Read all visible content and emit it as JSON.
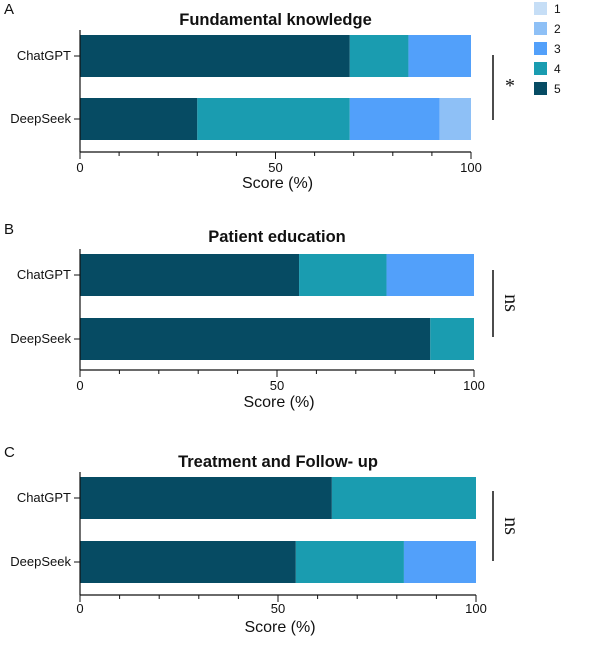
{
  "legend": [
    {
      "label": "1",
      "color": "#c6def6"
    },
    {
      "label": "2",
      "color": "#8ec0f6"
    },
    {
      "label": "3",
      "color": "#52a0fa"
    },
    {
      "label": "4",
      "color": "#1a9cb0"
    },
    {
      "label": "5",
      "color": "#064b63"
    }
  ],
  "chart_data": [
    {
      "type": "bar",
      "orientation": "horizontal",
      "stacked": true,
      "panel": "A",
      "title": "Fundamental knowledge",
      "xlabel": "Score (%)",
      "xlim": [
        0,
        100
      ],
      "xticks": [
        "0",
        "50",
        "100"
      ],
      "categories": [
        "ChatGPT",
        "DeepSeek"
      ],
      "series": [
        {
          "name": "5",
          "values": [
            69,
            30
          ]
        },
        {
          "name": "4",
          "values": [
            15,
            39
          ]
        },
        {
          "name": "3",
          "values": [
            16,
            23
          ]
        },
        {
          "name": "2",
          "values": [
            0,
            8
          ]
        },
        {
          "name": "1",
          "values": [
            0,
            0
          ]
        }
      ],
      "significance": "*"
    },
    {
      "type": "bar",
      "orientation": "horizontal",
      "stacked": true,
      "panel": "B",
      "title": "Patient education",
      "xlabel": "Score (%)",
      "xlim": [
        0,
        100
      ],
      "xticks": [
        "0",
        "50",
        "100"
      ],
      "categories": [
        "ChatGPT",
        "DeepSeek"
      ],
      "series": [
        {
          "name": "5",
          "values": [
            55.6,
            88.9
          ]
        },
        {
          "name": "4",
          "values": [
            22.2,
            11.1
          ]
        },
        {
          "name": "3",
          "values": [
            22.2,
            0
          ]
        },
        {
          "name": "2",
          "values": [
            0,
            0
          ]
        },
        {
          "name": "1",
          "values": [
            0,
            0
          ]
        }
      ],
      "significance": "ns"
    },
    {
      "type": "bar",
      "orientation": "horizontal",
      "stacked": true,
      "panel": "C",
      "title": "Treatment and Follow- up",
      "xlabel": "Score (%)",
      "xlim": [
        0,
        100
      ],
      "xticks": [
        "0",
        "50",
        "100"
      ],
      "categories": [
        "ChatGPT",
        "DeepSeek"
      ],
      "series": [
        {
          "name": "5",
          "values": [
            63.6,
            54.5
          ]
        },
        {
          "name": "4",
          "values": [
            36.4,
            27.3
          ]
        },
        {
          "name": "3",
          "values": [
            0,
            18.2
          ]
        },
        {
          "name": "2",
          "values": [
            0,
            0
          ]
        },
        {
          "name": "1",
          "values": [
            0,
            0
          ]
        }
      ],
      "significance": "ns"
    }
  ]
}
